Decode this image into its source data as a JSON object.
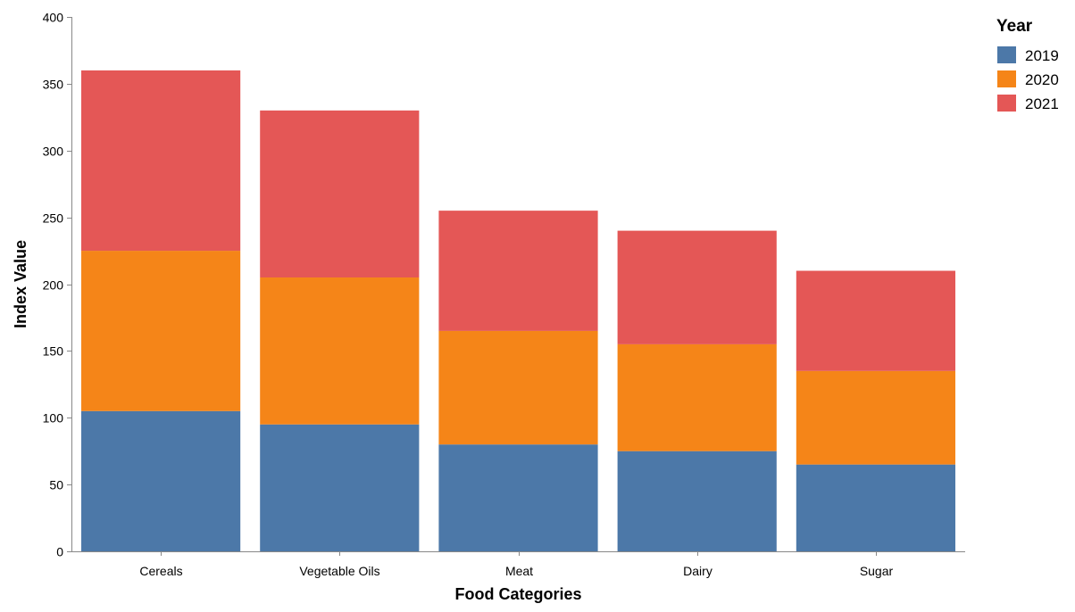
{
  "chart_data": {
    "type": "bar",
    "stacked": true,
    "categories": [
      "Cereals",
      "Vegetable Oils",
      "Meat",
      "Dairy",
      "Sugar"
    ],
    "series": [
      {
        "name": "2019",
        "color": "#4c78a8",
        "values": [
          105,
          95,
          80,
          75,
          65
        ]
      },
      {
        "name": "2020",
        "color": "#f58518",
        "values": [
          120,
          110,
          85,
          80,
          70
        ]
      },
      {
        "name": "2021",
        "color": "#e45756",
        "values": [
          135,
          125,
          90,
          85,
          75
        ]
      }
    ],
    "xlabel": "Food Categories",
    "ylabel": "Index Value",
    "ylim": [
      0,
      400
    ],
    "yticks": [
      0,
      50,
      100,
      150,
      200,
      250,
      300,
      350,
      400
    ],
    "grid": false,
    "legend": {
      "title": "Year",
      "placement": "top-right"
    }
  }
}
